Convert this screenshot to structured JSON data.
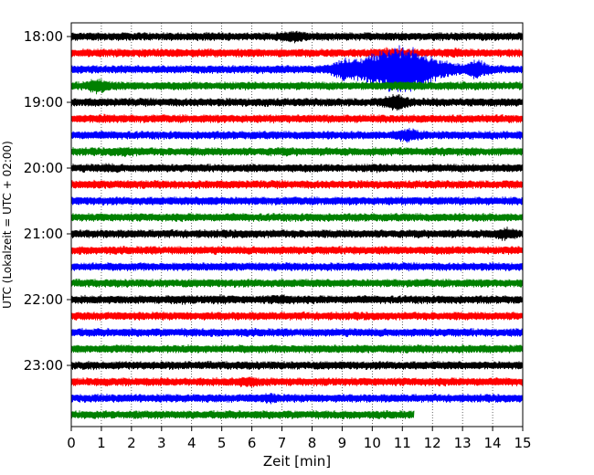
{
  "chart_data": {
    "type": "line",
    "title": "",
    "xlabel": "Zeit  [min]",
    "ylabel": "UTC (Lokalzeit = UTC + 02:00)",
    "xlim": [
      0,
      15
    ],
    "x_ticks": [
      "0",
      "1",
      "2",
      "3",
      "4",
      "5",
      "6",
      "7",
      "8",
      "9",
      "10",
      "11",
      "12",
      "13",
      "14",
      "15"
    ],
    "y_ticks": [
      "18:00",
      "19:00",
      "20:00",
      "21:00",
      "22:00",
      "23:00"
    ],
    "grid": "vertical dotted at each minute",
    "colors": [
      "#000000",
      "#ff0000",
      "#0000ff",
      "#008000"
    ],
    "series": [
      {
        "start": "18:00",
        "color": "#000000",
        "end_min": 15,
        "events": [
          {
            "x": 7.4,
            "amp": 1.6
          }
        ]
      },
      {
        "start": "18:15",
        "color": "#ff0000",
        "end_min": 15,
        "events": [
          {
            "x": 10.5,
            "amp": 1.3
          },
          {
            "x": 12.8,
            "amp": 1.2
          }
        ]
      },
      {
        "start": "18:30",
        "color": "#0000ff",
        "end_min": 15,
        "events": [
          {
            "x": 10.9,
            "amp": 6.0
          },
          {
            "x": 9.0,
            "amp": 1.8
          },
          {
            "x": 13.5,
            "amp": 2.2
          }
        ]
      },
      {
        "start": "18:45",
        "color": "#008000",
        "end_min": 15,
        "events": [
          {
            "x": 0.9,
            "amp": 2.0
          },
          {
            "x": 11.0,
            "amp": 1.2
          }
        ]
      },
      {
        "start": "19:00",
        "color": "#000000",
        "end_min": 15,
        "events": [
          {
            "x": 10.8,
            "amp": 2.2
          }
        ]
      },
      {
        "start": "19:15",
        "color": "#ff0000",
        "end_min": 15,
        "events": [
          {
            "x": 1.1,
            "amp": 1.2
          }
        ]
      },
      {
        "start": "19:30",
        "color": "#0000ff",
        "end_min": 15,
        "events": [
          {
            "x": 11.2,
            "amp": 1.8
          }
        ]
      },
      {
        "start": "19:45",
        "color": "#008000",
        "end_min": 15,
        "events": [
          {
            "x": 1.8,
            "amp": 1.3
          },
          {
            "x": 7.1,
            "amp": 1.1
          }
        ]
      },
      {
        "start": "20:00",
        "color": "#000000",
        "end_min": 15,
        "events": [
          {
            "x": 1.2,
            "amp": 1.2
          },
          {
            "x": 10.1,
            "amp": 1.1
          }
        ]
      },
      {
        "start": "20:15",
        "color": "#ff0000",
        "end_min": 15,
        "events": []
      },
      {
        "start": "20:30",
        "color": "#0000ff",
        "end_min": 15,
        "events": [
          {
            "x": 4.6,
            "amp": 1.1
          }
        ]
      },
      {
        "start": "20:45",
        "color": "#008000",
        "end_min": 15,
        "events": []
      },
      {
        "start": "21:00",
        "color": "#000000",
        "end_min": 15,
        "events": [
          {
            "x": 14.4,
            "amp": 1.6
          }
        ]
      },
      {
        "start": "21:15",
        "color": "#ff0000",
        "end_min": 15,
        "events": []
      },
      {
        "start": "21:30",
        "color": "#0000ff",
        "end_min": 15,
        "events": []
      },
      {
        "start": "21:45",
        "color": "#008000",
        "end_min": 15,
        "events": []
      },
      {
        "start": "22:00",
        "color": "#000000",
        "end_min": 15,
        "events": [
          {
            "x": 3.6,
            "amp": 1.2
          },
          {
            "x": 4.9,
            "amp": 1.2
          },
          {
            "x": 7.0,
            "amp": 1.3
          }
        ]
      },
      {
        "start": "22:15",
        "color": "#ff0000",
        "end_min": 15,
        "events": []
      },
      {
        "start": "22:30",
        "color": "#0000ff",
        "end_min": 15,
        "events": []
      },
      {
        "start": "22:45",
        "color": "#008000",
        "end_min": 15,
        "events": []
      },
      {
        "start": "23:00",
        "color": "#000000",
        "end_min": 15,
        "events": []
      },
      {
        "start": "23:15",
        "color": "#ff0000",
        "end_min": 15,
        "events": [
          {
            "x": 5.9,
            "amp": 1.4
          }
        ]
      },
      {
        "start": "23:30",
        "color": "#0000ff",
        "end_min": 15,
        "events": [
          {
            "x": 6.6,
            "amp": 1.3
          }
        ]
      },
      {
        "start": "23:45",
        "color": "#008000",
        "end_min": 11.4,
        "events": []
      }
    ]
  }
}
